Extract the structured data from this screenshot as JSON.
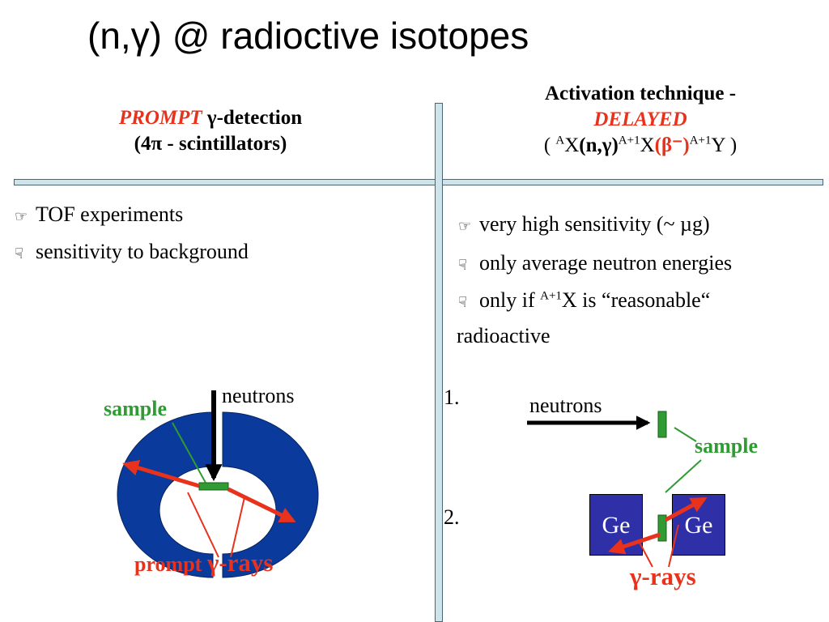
{
  "title": "(n,γ) @ radioctive isotopes",
  "left_header": {
    "prompt": "PROMPT",
    "detection": "γ-detection",
    "line2": "(4π - scintillators)"
  },
  "right_header": {
    "line1": "Activation technique -",
    "delayed": "DELAYED",
    "paren_open": "( ",
    "a": "A",
    "x1": "X",
    "ng": "(n,γ)",
    "a1": "A+1",
    "x2": "X",
    "beta": "(β⁻)",
    "a2": "A+1",
    "y_close": "Y )"
  },
  "left_bullets": [
    {
      "icon": "thumbs-up-icon",
      "text": "TOF experiments"
    },
    {
      "icon": "thumbs-down-icon",
      "text": "sensitivity to background"
    }
  ],
  "right_bullets": {
    "b1": "very high sensitivity (~ µg)",
    "b2": "only average neutron energies",
    "b3_pre": "only if ",
    "b3_sup": "A+1",
    "b3_post": "X is “reasonable“",
    "b3_line2": "radioactive"
  },
  "left_diagram": {
    "neutrons": "neutrons",
    "sample": "sample",
    "prompt": "prompt ",
    "rays": "γ-rays"
  },
  "right_diagram": {
    "step1": "1.",
    "step2": "2.",
    "neutrons": "neutrons",
    "sample": "sample",
    "ge_left": "Ge",
    "ge_right": "Ge",
    "rays": "γ-rays"
  },
  "colors": {
    "red": "#e8321c",
    "green": "#2f9b32",
    "detector_blue": "#0a3a9c",
    "ge_blue": "#2f2fa8",
    "divider": "#cfe3ea"
  }
}
